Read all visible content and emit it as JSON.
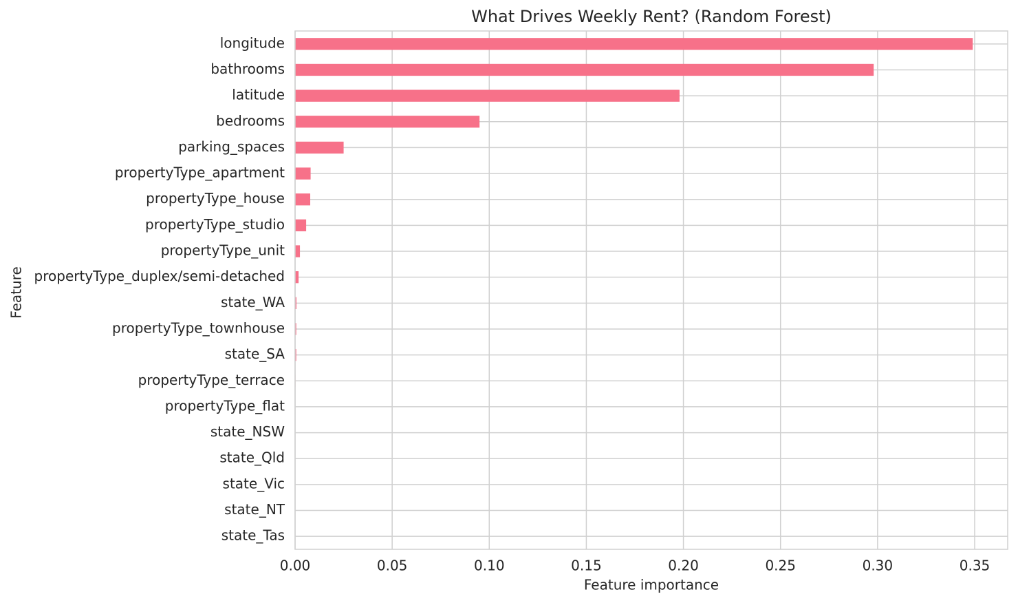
{
  "chart_data": {
    "type": "barh",
    "title": "What Drives Weekly Rent? (Random Forest)",
    "xlabel": "Feature importance",
    "ylabel": "Feature",
    "categories": [
      "longitude",
      "bathrooms",
      "latitude",
      "bedrooms",
      "parking_spaces",
      "propertyType_apartment",
      "propertyType_house",
      "propertyType_studio",
      "propertyType_unit",
      "propertyType_duplex/semi-detached",
      "state_WA",
      "propertyType_townhouse",
      "state_SA",
      "propertyType_terrace",
      "propertyType_flat",
      "state_NSW",
      "state_Qld",
      "state_Vic",
      "state_NT",
      "state_Tas"
    ],
    "values": [
      0.349,
      0.298,
      0.198,
      0.095,
      0.025,
      0.008,
      0.0078,
      0.0057,
      0.0025,
      0.0018,
      0.0007,
      0.0006,
      0.0006,
      0.0002,
      0.0001,
      0.0001,
      0.0001,
      0.0001,
      0,
      0
    ],
    "color": "#f77189",
    "xlim": [
      0,
      0.367
    ],
    "xticks": [
      {
        "value": 0,
        "label": "0.00"
      },
      0.05,
      {
        "value": 0.1,
        "label": "0.10"
      },
      0.15,
      {
        "value": 0.2,
        "label": "0.20"
      },
      0.25,
      {
        "value": 0.3,
        "label": "0.30"
      },
      0.35
    ],
    "grid": true
  }
}
